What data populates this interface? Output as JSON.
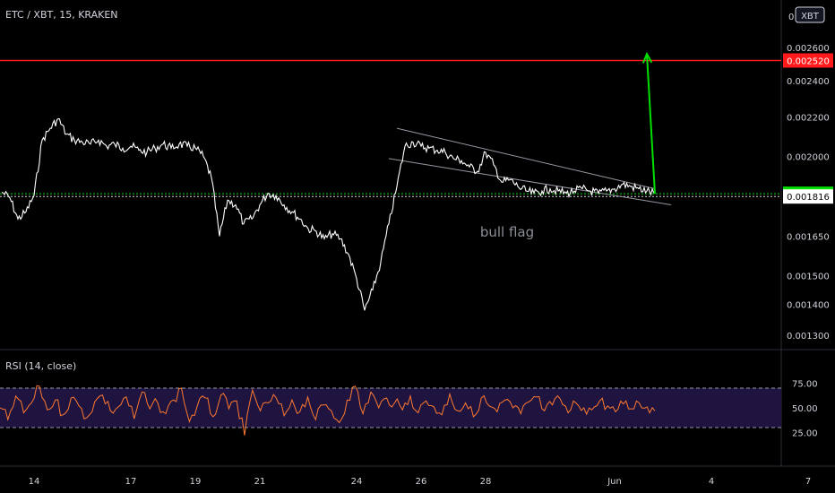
{
  "header": {
    "symbol": "ETC / XBT, 15, KRAKEN",
    "currency_badge": "XBT"
  },
  "chart_data": {
    "type": "line",
    "title": "ETC / XBT, 15, KRAKEN",
    "price_axis": {
      "ticks": [
        "0.002600",
        "0.002400",
        "0.002200",
        "0.002000",
        "0.001650",
        "0.001500",
        "0.001400",
        "0.001300"
      ],
      "tick_values": [
        0.0026,
        0.0024,
        0.0022,
        0.002,
        0.00165,
        0.0015,
        0.0014,
        0.0013
      ],
      "top_label": "0.00",
      "scale": "log"
    },
    "price_labels": [
      {
        "text": "0.002520",
        "value": 0.00252,
        "color": "#ff1b1b"
      },
      {
        "text": "0.001828",
        "value": 0.001828,
        "color": "#00e000"
      },
      {
        "text": "0.001816",
        "value": 0.001816,
        "color": "#ffffff"
      }
    ],
    "horizontal_lines": [
      {
        "value": 0.00252,
        "color": "#ff1b1b",
        "style": "solid"
      },
      {
        "value": 0.001828,
        "color": "#00e000",
        "style": "dotted"
      },
      {
        "value": 0.001816,
        "color": "#d1d4dc",
        "style": "dotted"
      }
    ],
    "x_axis_ticks": [
      "14",
      "17",
      "19",
      "21",
      "24",
      "26",
      "28",
      "Jun",
      "4",
      "7"
    ],
    "annotation": {
      "text": "bull flag",
      "color": "#8a8d96"
    },
    "series": [
      {
        "x": [
          "13 00:00",
          "13 06:00",
          "13 12:00",
          "13 18:00",
          "14 00:00",
          "14 06:00",
          "14 12:00",
          "14 18:00",
          "15 00:00",
          "15 06:00",
          "15 12:00",
          "15 18:00",
          "16 00:00",
          "16 06:00",
          "16 12:00",
          "16 18:00",
          "17 00:00",
          "17 06:00",
          "17 12:00",
          "17 18:00",
          "18 00:00",
          "18 06:00",
          "18 12:00",
          "18 18:00",
          "19 00:00",
          "19 06:00",
          "19 12:00",
          "19 18:00",
          "20 00:00",
          "20 06:00",
          "20 12:00",
          "20 18:00",
          "21 00:00",
          "21 06:00",
          "21 12:00",
          "21 18:00",
          "22 00:00",
          "22 06:00",
          "22 12:00",
          "22 18:00",
          "23 00:00",
          "23 06:00",
          "23 12:00",
          "23 18:00",
          "24 00:00",
          "24 06:00",
          "24 12:00",
          "24 18:00",
          "25 00:00",
          "25 06:00",
          "25 12:00",
          "25 18:00",
          "26 00:00",
          "26 06:00",
          "26 12:00",
          "26 18:00",
          "27 00:00",
          "27 06:00",
          "27 12:00",
          "27 18:00",
          "28 00:00",
          "28 06:00",
          "28 12:00",
          "28 18:00",
          "29 00:00",
          "29 06:00",
          "29 12:00",
          "29 18:00",
          "30 00:00",
          "30 06:00",
          "30 12:00",
          "30 18:00",
          "31 00:00",
          "31 06:00",
          "31 12:00",
          "31 18:00",
          "Jun 1 00:00",
          "Jun 1 06:00",
          "Jun 1 12:00",
          "Jun 1 18:00",
          "2 00:00",
          "2 06:00"
        ],
        "y": [
          0.001835,
          0.00181,
          0.00172,
          0.00175,
          0.00182,
          0.00208,
          0.00214,
          0.00219,
          0.00211,
          0.00208,
          0.00207,
          0.00206,
          0.00208,
          0.00205,
          0.00206,
          0.00204,
          0.00205,
          0.00203,
          0.00202,
          0.00204,
          0.00206,
          0.00204,
          0.00206,
          0.00205,
          0.00204,
          0.002,
          0.0019,
          0.00165,
          0.0018,
          0.00178,
          0.0017,
          0.00172,
          0.00178,
          0.00183,
          0.00182,
          0.00178,
          0.00175,
          0.00172,
          0.00168,
          0.00167,
          0.00164,
          0.00166,
          0.00164,
          0.00158,
          0.00149,
          0.00138,
          0.00145,
          0.00155,
          0.0017,
          0.00186,
          0.00205,
          0.00207,
          0.00205,
          0.00204,
          0.00203,
          0.00202,
          0.00199,
          0.00198,
          0.00195,
          0.00193,
          0.00202,
          0.00196,
          0.00188,
          0.00189,
          0.00186,
          0.00184,
          0.00183,
          0.00184,
          0.00185,
          0.00184,
          0.00183,
          0.00184,
          0.00185,
          0.00184,
          0.00183,
          0.00184,
          0.00185,
          0.00187,
          0.00186,
          0.00185,
          0.00184,
          0.001828
        ],
        "color": "#ffffff"
      }
    ],
    "forecast_arrow": {
      "from": {
        "x": "2 06:00",
        "y": 0.001828
      },
      "to": {
        "x": "3 06:00",
        "y": 0.00256
      },
      "color": "#00e000"
    },
    "flag_channel": [
      {
        "from": {
          "x": "25 06:00",
          "y": 0.00214
        },
        "to": {
          "x": "2 06:00",
          "y": 0.00185
        }
      },
      {
        "from": {
          "x": "25 00:00",
          "y": 0.00199
        },
        "to": {
          "x": "2 18:00",
          "y": 0.00178
        }
      }
    ],
    "rsi": {
      "label": "RSI (14, close)",
      "ticks": [
        "75.00",
        "50.00",
        "25.00"
      ],
      "tick_values": [
        75,
        50,
        25
      ],
      "band": [
        30,
        70
      ],
      "ylim": [
        0,
        100
      ],
      "color": "#ff7a2e",
      "band_fill": "#1f1340",
      "values": [
        50,
        38,
        62,
        45,
        55,
        72,
        48,
        58,
        43,
        60,
        52,
        40,
        56,
        63,
        47,
        51,
        61,
        39,
        66,
        49,
        55,
        44,
        58,
        70,
        36,
        52,
        60,
        41,
        63,
        49,
        57,
        22,
        68,
        47,
        55,
        60,
        42,
        58,
        46,
        61,
        38,
        53,
        47,
        35,
        58,
        72,
        44,
        66,
        50,
        60,
        55,
        48,
        62,
        45,
        57,
        51,
        43,
        64,
        47,
        55,
        41,
        60,
        52,
        46,
        58,
        50,
        44,
        56,
        61,
        47,
        53,
        59,
        45,
        55,
        50,
        48,
        57,
        52,
        46,
        54,
        49,
        55,
        51,
        47
      ]
    }
  }
}
